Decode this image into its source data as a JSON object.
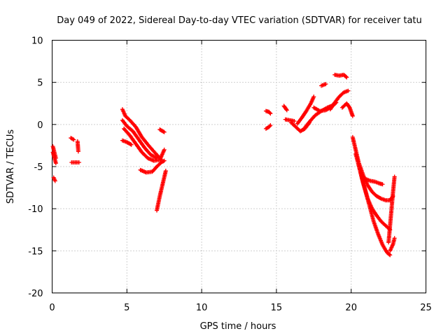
{
  "chart_data": {
    "type": "scatter",
    "title": "Day 049 of 2022, Sidereal Day-to-day VTEC variation (SDTVAR) for receiver tatu",
    "xlabel": "GPS time / hours",
    "ylabel": "SDTVAR / TECUs",
    "xlim": [
      0,
      25
    ],
    "ylim": [
      -20,
      10
    ],
    "x_ticks": [
      "0",
      "5",
      "10",
      "15",
      "20",
      "25"
    ],
    "y_ticks": [
      "-20",
      "-15",
      "-10",
      "-5",
      "0",
      "5",
      "10"
    ],
    "grid": true,
    "marker": "+",
    "series_color": "#ff0000",
    "series": [
      {
        "name": "SDTVAR",
        "segments": [
          {
            "x": [
              0.05,
              0.25
            ],
            "y": [
              -2.6,
              -4.0
            ]
          },
          {
            "x": [
              0.05,
              0.25
            ],
            "y": [
              -3.3,
              -4.6
            ]
          },
          {
            "x": [
              0.1,
              0.2
            ],
            "y": [
              -6.3,
              -6.7
            ]
          },
          {
            "x": [
              1.25,
              1.45
            ],
            "y": [
              -1.6,
              -1.8
            ]
          },
          {
            "x": [
              1.3,
              1.8
            ],
            "y": [
              -4.5,
              -4.5
            ]
          },
          {
            "x": [
              1.7,
              1.75
            ],
            "y": [
              -2.0,
              -3.2
            ]
          },
          {
            "x": [
              4.7,
              4.9,
              5.2,
              5.6,
              6.0,
              6.5,
              7.0,
              7.3
            ],
            "y": [
              1.8,
              1.0,
              0.5,
              -0.3,
              -1.5,
              -2.6,
              -3.6,
              -4.2
            ]
          },
          {
            "x": [
              4.7,
              5.0,
              5.4,
              5.8,
              6.2,
              6.6,
              7.0
            ],
            "y": [
              0.5,
              -0.2,
              -0.8,
              -1.8,
              -2.8,
              -3.6,
              -4.0
            ]
          },
          {
            "x": [
              4.8,
              5.2,
              5.6,
              6.0,
              6.4,
              6.8,
              7.2,
              7.5
            ],
            "y": [
              -0.5,
              -1.3,
              -2.3,
              -3.3,
              -4.0,
              -4.3,
              -4.2,
              -3.0
            ]
          },
          {
            "x": [
              4.7,
              5.0,
              5.3
            ],
            "y": [
              -1.9,
              -2.1,
              -2.4
            ]
          },
          {
            "x": [
              5.9,
              6.3,
              6.7,
              7.0,
              7.3,
              7.5
            ],
            "y": [
              -5.4,
              -5.7,
              -5.6,
              -5.0,
              -4.5,
              -4.3
            ]
          },
          {
            "x": [
              7.0,
              7.2,
              7.4,
              7.6
            ],
            "y": [
              -10.2,
              -8.5,
              -7.0,
              -5.5
            ]
          },
          {
            "x": [
              7.2,
              7.5
            ],
            "y": [
              -0.6,
              -0.9
            ]
          },
          {
            "x": [
              14.3,
              14.5,
              14.6
            ],
            "y": [
              1.6,
              1.5,
              1.3
            ]
          },
          {
            "x": [
              14.3,
              14.5,
              14.6
            ],
            "y": [
              -0.5,
              -0.3,
              -0.1
            ]
          },
          {
            "x": [
              15.5,
              15.7
            ],
            "y": [
              2.2,
              1.7
            ]
          },
          {
            "x": [
              15.6,
              15.9,
              16.2
            ],
            "y": [
              0.6,
              0.5,
              0.4
            ]
          },
          {
            "x": [
              16.0,
              16.3,
              16.6,
              16.9,
              17.2
            ],
            "y": [
              0.2,
              -0.3,
              -0.8,
              -0.5,
              0.2
            ]
          },
          {
            "x": [
              16.4,
              16.7,
              17.0,
              17.3,
              17.5
            ],
            "y": [
              0.1,
              0.8,
              1.6,
              2.5,
              3.3
            ]
          },
          {
            "x": [
              16.8,
              17.2,
              17.6,
              18.0,
              18.4,
              18.8
            ],
            "y": [
              -0.6,
              0.3,
              1.1,
              1.6,
              2.0,
              2.3
            ]
          },
          {
            "x": [
              17.5,
              17.9,
              18.3,
              18.7,
              19.0
            ],
            "y": [
              2.0,
              1.6,
              1.7,
              2.1,
              2.6
            ]
          },
          {
            "x": [
              18.0,
              18.3
            ],
            "y": [
              4.6,
              4.8
            ]
          },
          {
            "x": [
              18.9,
              19.2,
              19.5,
              19.7
            ],
            "y": [
              5.9,
              5.8,
              5.9,
              5.6
            ]
          },
          {
            "x": [
              18.6,
              18.9,
              19.2,
              19.5,
              19.8
            ],
            "y": [
              1.8,
              2.6,
              3.3,
              3.8,
              4.0
            ]
          },
          {
            "x": [
              19.4,
              19.7,
              19.9,
              20.1
            ],
            "y": [
              2.0,
              2.5,
              2.0,
              1.0
            ]
          },
          {
            "x": [
              20.1,
              20.3,
              20.5,
              20.8,
              21.1,
              21.4,
              21.7,
              22.0,
              22.3,
              22.6,
              22.8
            ],
            "y": [
              -1.5,
              -3.0,
              -4.5,
              -6.0,
              -7.2,
              -8.0,
              -8.5,
              -8.8,
              -9.0,
              -9.0,
              -8.5
            ]
          },
          {
            "x": [
              20.3,
              20.6,
              20.9,
              21.2,
              21.5,
              21.8,
              22.1,
              22.4,
              22.6
            ],
            "y": [
              -3.5,
              -5.5,
              -7.5,
              -9.5,
              -11.5,
              -13.0,
              -14.3,
              -15.2,
              -15.5
            ]
          },
          {
            "x": [
              20.5,
              20.8,
              21.1,
              21.4,
              21.7,
              22.0,
              22.3,
              22.6
            ],
            "y": [
              -4.8,
              -7.0,
              -8.8,
              -10.0,
              -10.8,
              -11.5,
              -12.0,
              -12.5
            ]
          },
          {
            "x": [
              21.0,
              21.3,
              21.6,
              21.9,
              22.1
            ],
            "y": [
              -6.5,
              -6.7,
              -6.8,
              -7.0,
              -7.1
            ]
          },
          {
            "x": [
              22.5,
              22.6,
              22.7,
              22.8,
              22.9
            ],
            "y": [
              -14.0,
              -12.0,
              -10.0,
              -8.0,
              -6.2
            ]
          },
          {
            "x": [
              22.6,
              22.8,
              22.9
            ],
            "y": [
              -15.0,
              -14.2,
              -13.5
            ]
          }
        ]
      }
    ]
  }
}
